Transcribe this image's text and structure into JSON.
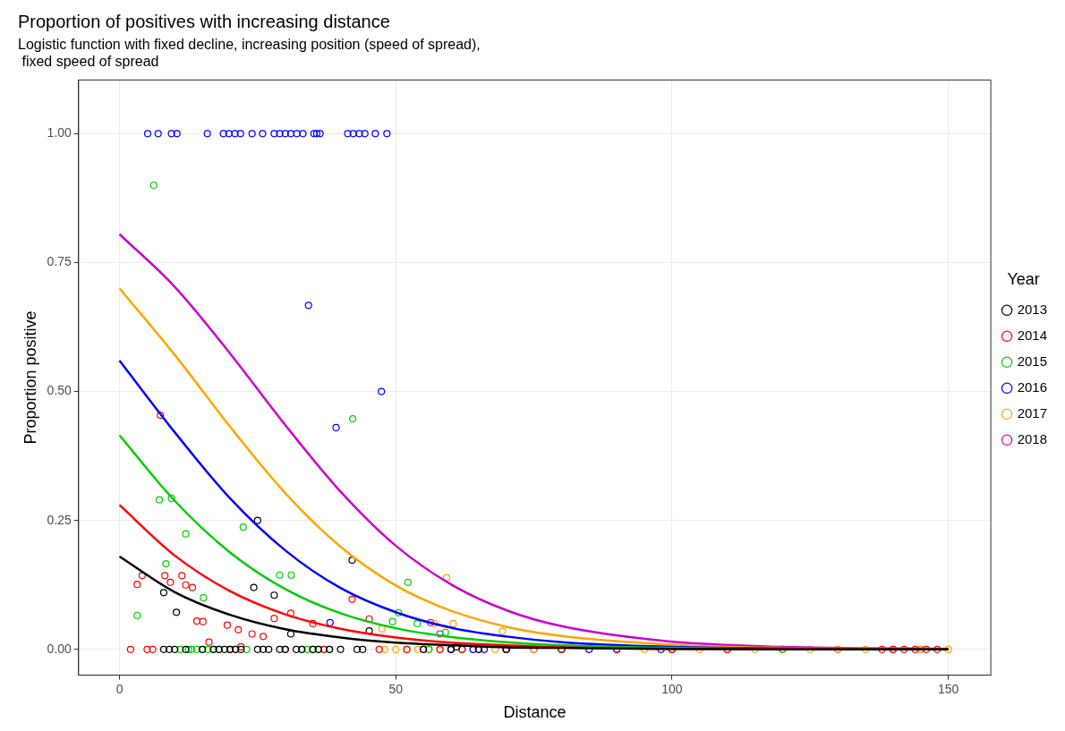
{
  "chart_data": {
    "type": "scatter",
    "title": "Proportion of positives with increasing distance",
    "subtitle": "Logistic function with fixed decline, increasing position (speed of spread),\n fixed speed of spread",
    "xlabel": "Distance",
    "ylabel": "Proportion positive",
    "legend_title": "Year",
    "legend": "right",
    "grid": true,
    "marker": "circle",
    "line_style": "solid",
    "xlim": [
      -7.4,
      157.7
    ],
    "xticks": [
      0,
      50,
      100,
      150
    ],
    "ylim": [
      -0.05,
      1.104
    ],
    "yticks": [
      {
        "value": 0,
        "label": "0.00"
      },
      {
        "value": 0.25,
        "label": "0.25"
      },
      {
        "value": 0.5,
        "label": "0.50"
      },
      {
        "value": 0.75,
        "label": "0.75"
      },
      {
        "value": 1,
        "label": "1.00"
      }
    ],
    "series": [
      {
        "name": "2013",
        "color": "#000000",
        "x": [
          8,
          10.3,
          24.3,
          25,
          28,
          42.1,
          45.2,
          31,
          61,
          8,
          9,
          10,
          12,
          15,
          17,
          18,
          19,
          20,
          21,
          22,
          25,
          26,
          27,
          29,
          30,
          32,
          33,
          35,
          36,
          38,
          40,
          43,
          44,
          55,
          60,
          65,
          70
        ],
        "values": [
          0.11,
          0.072,
          0.12,
          0.25,
          0.105,
          0.173,
          0.036,
          0.03,
          0.005,
          0,
          0,
          0,
          0,
          0,
          0,
          0,
          0,
          0,
          0,
          0,
          0,
          0,
          0,
          0,
          0,
          0,
          0,
          0,
          0,
          0,
          0,
          0,
          0,
          0,
          0,
          0,
          0
        ]
      },
      {
        "name": "2014",
        "color": "#ff0000",
        "x": [
          7.4,
          3.2,
          4.1,
          8.2,
          9.2,
          11.3,
          12,
          13.2,
          14,
          15.1,
          16.2,
          19.5,
          21.5,
          22,
          24,
          26,
          28,
          31,
          35,
          42.1,
          45.2,
          2,
          5,
          6,
          20,
          30,
          37,
          47,
          52,
          58,
          62,
          70,
          80,
          90,
          100,
          110,
          138,
          140,
          142,
          144,
          146,
          148
        ],
        "values": [
          0.454,
          0.126,
          0.143,
          0.143,
          0.13,
          0.143,
          0.125,
          0.12,
          0.055,
          0.054,
          0.014,
          0.047,
          0.038,
          0.005,
          0.03,
          0.025,
          0.06,
          0.07,
          0.05,
          0.097,
          0.059,
          0,
          0,
          0,
          0,
          0,
          0,
          0,
          0,
          0,
          0,
          0,
          0,
          0,
          0,
          0,
          0,
          0,
          0,
          0,
          0,
          0
        ]
      },
      {
        "name": "2015",
        "color": "#00cc00",
        "x": [
          6.2,
          7.2,
          9.4,
          8.4,
          12,
          3.2,
          15.2,
          22.4,
          29,
          31.1,
          42.2,
          52.2,
          49.4,
          50.5,
          53.9,
          59,
          11,
          12.5,
          13,
          14,
          15,
          16,
          17,
          18,
          20,
          21,
          23,
          33,
          34,
          35,
          36,
          37,
          38,
          56,
          62,
          80,
          100,
          120
        ],
        "values": [
          0.9,
          0.29,
          0.293,
          0.166,
          0.224,
          0.066,
          0.1,
          0.237,
          0.144,
          0.144,
          0.447,
          0.13,
          0.054,
          0.071,
          0.05,
          0.033,
          0,
          0,
          0,
          0,
          0,
          0,
          0,
          0,
          0,
          0,
          0,
          0,
          0,
          0,
          0,
          0,
          0,
          0,
          0,
          0,
          0,
          0
        ]
      },
      {
        "name": "2016",
        "color": "#0000ff",
        "x": [
          5.1,
          7,
          9.4,
          10.4,
          15.9,
          18.8,
          19.8,
          20.9,
          21.9,
          24,
          25.9,
          28,
          29,
          30,
          31,
          32.1,
          33.2,
          35.2,
          35.7,
          36.3,
          41.3,
          42.3,
          43.4,
          44.4,
          46.3,
          48.4,
          34.2,
          39.2,
          47.4,
          38.1,
          60,
          64,
          66,
          70,
          80,
          85,
          90,
          98
        ],
        "values": [
          1,
          1,
          1,
          1,
          1,
          1,
          1,
          1,
          1,
          1,
          1,
          1,
          1,
          1,
          1,
          1,
          1,
          1,
          1,
          1,
          1,
          1,
          1,
          1,
          1,
          1,
          0.667,
          0.43,
          0.5,
          0.052,
          0,
          0,
          0,
          0,
          0,
          0,
          0,
          0
        ]
      },
      {
        "name": "2017",
        "color": "#ffa500",
        "x": [
          59.2,
          60.4,
          57,
          69.3,
          47.5,
          48,
          50,
          52,
          54,
          56,
          58,
          62,
          64,
          66,
          68,
          70,
          75,
          80,
          85,
          90,
          95,
          100,
          105,
          110,
          115,
          120,
          125,
          130,
          135,
          140,
          145,
          150
        ],
        "values": [
          0.139,
          0.05,
          0.05,
          0.035,
          0.04,
          0,
          0,
          0,
          0,
          0,
          0,
          0,
          0,
          0,
          0,
          0,
          0,
          0,
          0,
          0,
          0,
          0,
          0,
          0,
          0,
          0,
          0,
          0,
          0,
          0,
          0,
          0
        ]
      },
      {
        "name": "2018",
        "color": "#cc00cc",
        "x": [
          56.3,
          58,
          55,
          60,
          65,
          70,
          75,
          80,
          90,
          100,
          110,
          120,
          130,
          140,
          145
        ],
        "values": [
          0.052,
          0.03,
          0,
          0,
          0,
          0,
          0,
          0,
          0,
          0,
          0,
          0,
          0,
          0,
          0
        ]
      },
      {
        "type": "line",
        "marker": "none",
        "color": "#000000",
        "x": [
          0,
          10,
          20,
          30,
          40,
          50,
          60,
          70,
          80,
          100,
          120,
          150
        ],
        "values": [
          0.18,
          0.111,
          0.067,
          0.039,
          0.023,
          0.013,
          0.008,
          0.004,
          0.003,
          0.001,
          0,
          0
        ]
      },
      {
        "type": "line",
        "marker": "none",
        "color": "#ff0000",
        "x": [
          0,
          10,
          20,
          30,
          40,
          50,
          60,
          70,
          80,
          100,
          120,
          150
        ],
        "values": [
          0.28,
          0.182,
          0.113,
          0.068,
          0.04,
          0.023,
          0.013,
          0.008,
          0.004,
          0.001,
          0.001,
          0
        ]
      },
      {
        "type": "line",
        "marker": "none",
        "color": "#00cc00",
        "x": [
          0,
          10,
          20,
          30,
          40,
          50,
          60,
          70,
          80,
          100,
          120,
          150
        ],
        "values": [
          0.415,
          0.288,
          0.188,
          0.117,
          0.07,
          0.041,
          0.024,
          0.014,
          0.008,
          0.003,
          0.001,
          0
        ]
      },
      {
        "type": "line",
        "marker": "none",
        "color": "#0000ff",
        "x": [
          0,
          10,
          20,
          30,
          40,
          50,
          60,
          70,
          80,
          100,
          120,
          150
        ],
        "values": [
          0.56,
          0.421,
          0.293,
          0.192,
          0.119,
          0.072,
          0.042,
          0.025,
          0.014,
          0.005,
          0.002,
          0
        ]
      },
      {
        "type": "line",
        "marker": "none",
        "color": "#ffa500",
        "x": [
          0,
          10,
          20,
          30,
          40,
          50,
          60,
          70,
          80,
          100,
          120,
          150
        ],
        "values": [
          0.7,
          0.571,
          0.432,
          0.303,
          0.199,
          0.124,
          0.075,
          0.044,
          0.026,
          0.009,
          0.003,
          0.001
        ]
      },
      {
        "type": "line",
        "marker": "none",
        "color": "#cc00cc",
        "x": [
          0,
          10,
          20,
          30,
          40,
          50,
          60,
          70,
          80,
          100,
          120,
          150
        ],
        "values": [
          0.805,
          0.703,
          0.574,
          0.435,
          0.306,
          0.201,
          0.126,
          0.076,
          0.045,
          0.015,
          0.005,
          0.001
        ]
      }
    ]
  }
}
